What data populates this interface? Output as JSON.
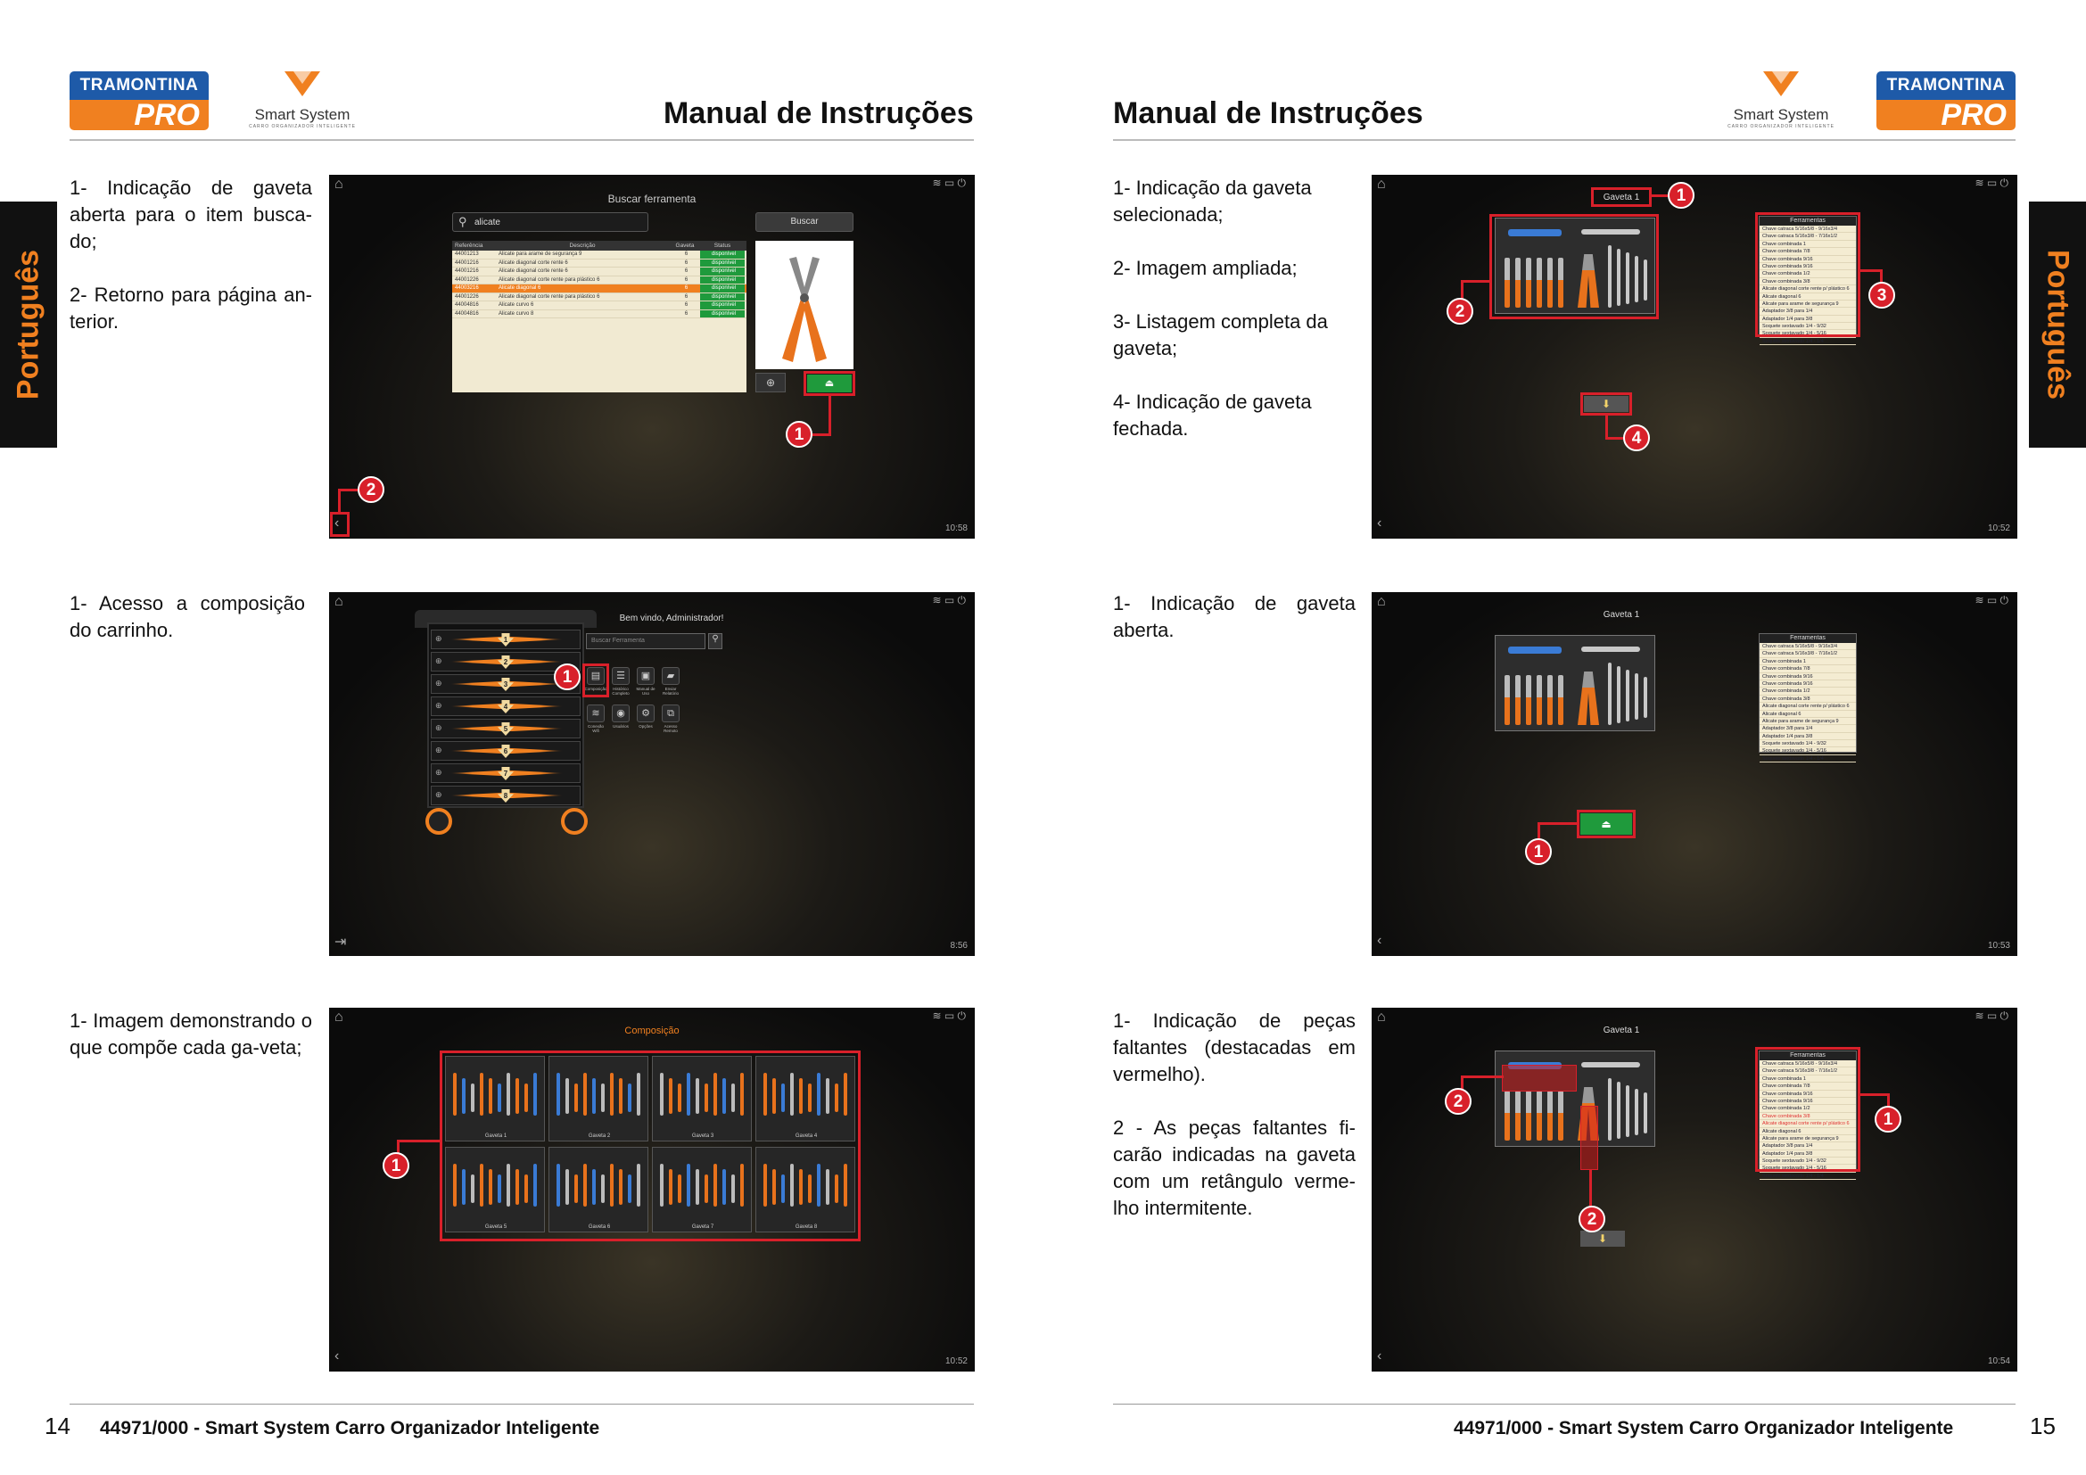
{
  "brand": {
    "tramontina": "TRAMONTINA",
    "pro": "PRO",
    "smart_system": "Smart System",
    "smart_sub": "CARRO ORGANIZADOR INTELIGENTE"
  },
  "header_title": "Manual de Instruções",
  "language_tab": "Português",
  "footer": {
    "text": "44971/000 - Smart System Carro Organizador Inteligente",
    "left_page": "14",
    "right_page": "15"
  },
  "left": {
    "s1": {
      "items": [
        "1- Indicação de gaveta aberta para o item busca-do;",
        "2- Retorno para página an-terior."
      ]
    },
    "s2": {
      "items": [
        "1- Acesso a composição do carrinho."
      ]
    },
    "s3": {
      "items": [
        "1- Imagem demonstrando o que compõe cada ga-veta;"
      ]
    }
  },
  "right": {
    "s1": {
      "items": [
        "1- Indicação da gaveta selecionada;",
        "2- Imagem ampliada;",
        "3- Listagem completa da gaveta;",
        "4- Indicação de gaveta fechada."
      ]
    },
    "s2": {
      "items": [
        "1- Indicação de gaveta aberta."
      ]
    },
    "s3": {
      "items": [
        "1- Indicação de peças faltantes (destacadas em vermelho).",
        "2 - As peças faltantes fi-carão indicadas na gaveta com um retângulo verme-lho intermitente."
      ]
    }
  },
  "screens": {
    "search": {
      "title": "Buscar ferramenta",
      "query": "alicate",
      "button": "Buscar",
      "time": "10:58",
      "columns": [
        "Referência",
        "Descrição",
        "Gaveta",
        "Status"
      ],
      "rows": [
        [
          "44001213",
          "Alicate para arame de segurança 9",
          "6",
          "disponível"
        ],
        [
          "44001216",
          "Alicate diagonal corte rente 6",
          "6",
          "disponível"
        ],
        [
          "44001216",
          "Alicate diagonal corte rente 6",
          "6",
          "disponível"
        ],
        [
          "44001226",
          "Alicate diagonal corte rente para plástico 6",
          "6",
          "disponível"
        ],
        [
          "44003216",
          "Alicate diagonal 6",
          "6",
          "disponível"
        ],
        [
          "44001226",
          "Alicate diagonal corte rente para plástico 6",
          "6",
          "disponível"
        ],
        [
          "44004816",
          "Alicate curvo 6",
          "6",
          "disponível"
        ],
        [
          "44004816",
          "Alicate curvo 8",
          "6",
          "disponível"
        ]
      ]
    },
    "home": {
      "welcome": "Bem vindo, Administrador!",
      "search_placeholder": "Buscar Ferramenta",
      "time": "8:56",
      "icons": [
        {
          "label": "Composição",
          "icon": "drawer-icon"
        },
        {
          "label": "Histórico Completo",
          "icon": "history-icon"
        },
        {
          "label": "Manual de Uso",
          "icon": "manual-icon"
        },
        {
          "label": "Enviar Relatório",
          "icon": "folder-icon"
        },
        {
          "label": "Conexão Wifi",
          "icon": "wifi-icon"
        },
        {
          "label": "Usuários",
          "icon": "users-icon"
        },
        {
          "label": "Opções",
          "icon": "gear-icon"
        },
        {
          "label": "Acesso Remoto",
          "icon": "remote-icon"
        }
      ],
      "drawers": [
        "1",
        "2",
        "3",
        "4",
        "5",
        "6",
        "7",
        "8"
      ]
    },
    "composition": {
      "title": "Composição",
      "time": "10:52",
      "drawers": [
        "Gaveta 1",
        "Gaveta 2",
        "Gaveta 3",
        "Gaveta 4",
        "Gaveta 5",
        "Gaveta 6",
        "Gaveta 7",
        "Gaveta 8"
      ]
    },
    "drawer": {
      "title": "Gaveta 1",
      "list_header": "Ferramentas",
      "times": [
        "10:52",
        "10:53",
        "10:54"
      ],
      "tools": [
        "Chave catraca 5/16x5/8 - 9/16x3/4",
        "Chave catraca 5/16x3/8 - 7/16x1/2",
        "Chave combinada 1",
        "Chave combinada 7/8",
        "Chave combinada 9/16",
        "Chave combinada 9/16",
        "Chave combinada 1/2",
        "Chave combinada 3/8",
        "Alicate diagonal corte rente p/ plástico 6",
        "Alicate diagonal 6",
        "Alicate para arame de segurança 9",
        "Adaptador 3/8 para 1/4",
        "Adaptador 1/4 para 3/8",
        "Soquete sextavado 1/4 - 9/32",
        "Soquete sextavado 1/4 - 5/16",
        "Soquete sextavado 1/4 - 1/4"
      ]
    }
  },
  "colors": {
    "accent": "#f08020",
    "brand_blue": "#1e5aa8",
    "callout_red": "#d8202a",
    "status_green": "#1f9a3c"
  }
}
